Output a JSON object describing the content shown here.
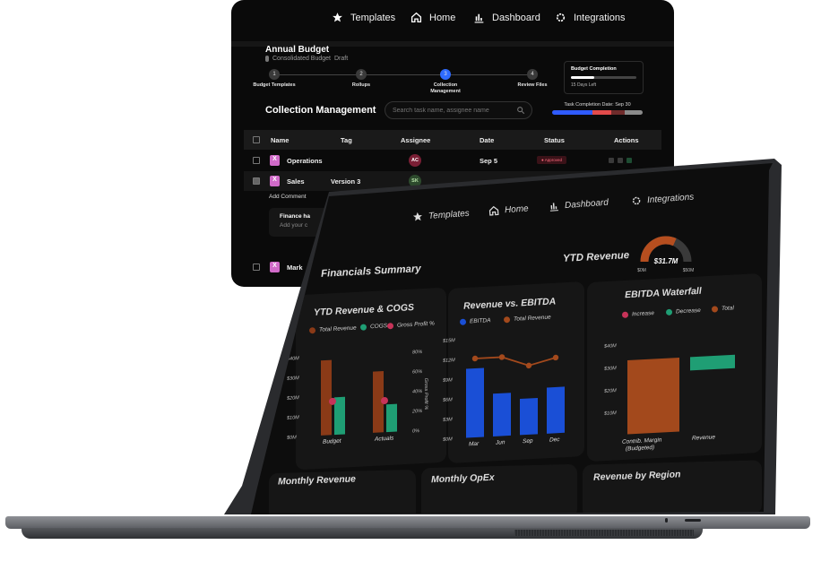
{
  "back_panel": {
    "nav": [
      {
        "label": "Templates",
        "icon": "star-icon"
      },
      {
        "label": "Home",
        "icon": "home-icon"
      },
      {
        "label": "Dashboard",
        "icon": "bar-chart-icon"
      },
      {
        "label": "Integrations",
        "icon": "gear-icon"
      }
    ],
    "budget_title": "Annual Budget",
    "budget_subtitle": "Consolidated Budget",
    "budget_status": "Draft",
    "steps": [
      {
        "num": "1",
        "label": "Budget Templates"
      },
      {
        "num": "2",
        "label": "Rollups"
      },
      {
        "num": "3",
        "label": "Collection Management"
      },
      {
        "num": "4",
        "label": "Review Files"
      }
    ],
    "budget_completion": {
      "label": "Budget Completion",
      "progress": 0.35,
      "days_left": "15 Days Left"
    },
    "section_title": "Collection Management",
    "search_placeholder": "Search task name, assignee name",
    "task_completion_label": "Task Completion Date: Sep 30",
    "task_bar_colors": [
      "#2f5bff",
      "#e24b4b",
      "#6f2b2b",
      "#8a8a8a"
    ],
    "columns": [
      "Name",
      "Tag",
      "Assignee",
      "Date",
      "Status",
      "Actions"
    ],
    "rows": [
      {
        "name": "Operations",
        "tag": "",
        "assignee": "AC",
        "assignee_color": "#7a1f35",
        "date": "Sep 5",
        "status": "Approved"
      },
      {
        "name": "Sales",
        "tag": "Version 3",
        "assignee": "SK",
        "assignee_color": "#2d4a2d",
        "date": "Sep 5",
        "status": ""
      }
    ],
    "add_comment": "Add Comment",
    "comment_author": "Finance ha",
    "comment_placeholder": "Add your c",
    "last_row_name": "Mark"
  },
  "screen": {
    "nav": [
      {
        "label": "Templates",
        "icon": "star-icon"
      },
      {
        "label": "Home",
        "icon": "home-icon"
      },
      {
        "label": "Dashboard",
        "icon": "bar-chart-icon"
      },
      {
        "label": "Integrations",
        "icon": "gear-icon"
      }
    ],
    "financials_title": "Financials Summary",
    "ytd_revenue_label": "YTD Revenue",
    "ytd_gauge": {
      "value": "$31.7M",
      "min": "$0M",
      "max": "$50M",
      "fraction": 0.634
    },
    "cards": {
      "ytd_rev_cogs": "YTD Revenue & COGS",
      "rev_vs_ebitda": "Revenue vs. EBITDA",
      "ebitda_waterfall": "EBITDA Waterfall",
      "monthly_revenue": "Monthly Revenue",
      "monthly_opex": "Monthly OpEx",
      "revenue_by_region": "Revenue by Region"
    }
  },
  "chart_data": [
    {
      "type": "bar",
      "title": "YTD Revenue & COGS",
      "categories": [
        "Budget",
        "Actuals"
      ],
      "series": [
        {
          "name": "Total Revenue",
          "color": "#8a3a17",
          "values": [
            38,
            31
          ]
        },
        {
          "name": "COGS",
          "color": "#1f9e74",
          "values": [
            19,
            14
          ]
        },
        {
          "name": "Gross Profit %",
          "color": "#c73359",
          "values": [
            17,
            16
          ]
        }
      ],
      "y_ticks": [
        "$0M",
        "$10M",
        "$20M",
        "$30M",
        "$40M"
      ],
      "y2_ticks": [
        "0%",
        "20%",
        "40%",
        "60%",
        "80%"
      ],
      "y2_label": "Gross Profit %",
      "ylim": [
        0,
        40
      ]
    },
    {
      "type": "bar",
      "title": "Revenue vs. EBITDA",
      "categories": [
        "Mar",
        "Jun",
        "Sep",
        "Dec"
      ],
      "series": [
        {
          "name": "EBITDA",
          "color": "#1a4fd6",
          "values": [
            10.5,
            6.5,
            5.5,
            7
          ]
        },
        {
          "name": "Total Revenue",
          "color": "#a3491c",
          "values": [
            12,
            12,
            10.5,
            11.5
          ]
        }
      ],
      "y_ticks": [
        "$0M",
        "$3M",
        "$6M",
        "$9M",
        "$12M",
        "$15M"
      ],
      "ylim": [
        0,
        15
      ]
    },
    {
      "type": "bar",
      "title": "EBITDA Waterfall",
      "categories": [
        "Contrib. Margin (Budgeted)",
        "Revenue"
      ],
      "series": [
        {
          "name": "Increase",
          "color": "#c73359",
          "values": [
            0,
            0
          ]
        },
        {
          "name": "Decrease",
          "color": "#1f9e74",
          "values": [
            0,
            5
          ]
        },
        {
          "name": "Total",
          "color": "#a3491c",
          "values": [
            33,
            0
          ]
        }
      ],
      "y_ticks": [
        "$10M",
        "$20M",
        "$30M",
        "$40M"
      ],
      "ylim": [
        0,
        40
      ]
    }
  ]
}
